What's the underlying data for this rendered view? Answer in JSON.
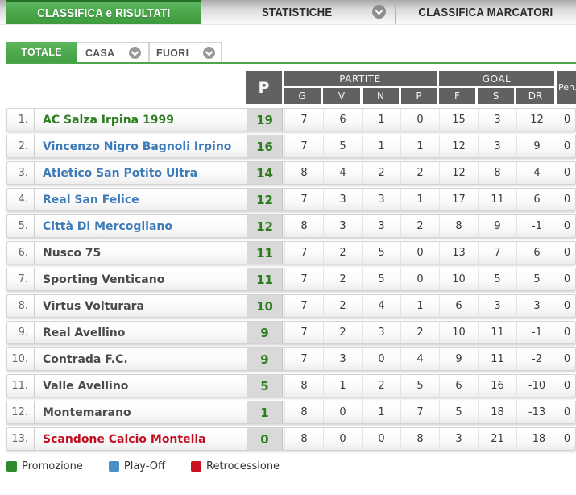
{
  "tabs": {
    "main": [
      {
        "label": "CLASSIFICA e RISULTATI",
        "active": true
      },
      {
        "label": "STATISTICHE",
        "active": false,
        "has_chevron": true
      },
      {
        "label": "CLASSIFICA MARCATORI",
        "active": false
      }
    ],
    "filter": [
      {
        "label": "TOTALE",
        "active": true
      },
      {
        "label": "CASA",
        "active": false,
        "has_chevron": true
      },
      {
        "label": "FUORI",
        "active": false,
        "has_chevron": true
      }
    ]
  },
  "table": {
    "headers": {
      "points": "P",
      "partite": "PARTITE",
      "partite_cols": [
        "G",
        "V",
        "N",
        "P"
      ],
      "goal": "GOAL",
      "goal_cols": [
        "F",
        "S",
        "DR"
      ],
      "pen": "Pen."
    },
    "rows": [
      {
        "pos": "1.",
        "team": "AC Salza Irpina 1999",
        "zone": "promotion",
        "pts": "19",
        "g": "7",
        "v": "6",
        "n": "1",
        "p": "0",
        "f": "15",
        "s": "3",
        "dr": "12",
        "pen": "0"
      },
      {
        "pos": "2.",
        "team": "Vincenzo Nigro Bagnoli Irpino",
        "zone": "playoff",
        "pts": "16",
        "g": "7",
        "v": "5",
        "n": "1",
        "p": "1",
        "f": "12",
        "s": "3",
        "dr": "9",
        "pen": "0"
      },
      {
        "pos": "3.",
        "team": "Atletico San Potito Ultra",
        "zone": "playoff",
        "pts": "14",
        "g": "8",
        "v": "4",
        "n": "2",
        "p": "2",
        "f": "12",
        "s": "8",
        "dr": "4",
        "pen": "0"
      },
      {
        "pos": "4.",
        "team": "Real San Felice",
        "zone": "playoff",
        "pts": "12",
        "g": "7",
        "v": "3",
        "n": "3",
        "p": "1",
        "f": "17",
        "s": "11",
        "dr": "6",
        "pen": "0"
      },
      {
        "pos": "5.",
        "team": "Città Di Mercogliano",
        "zone": "playoff",
        "pts": "12",
        "g": "8",
        "v": "3",
        "n": "3",
        "p": "2",
        "f": "8",
        "s": "9",
        "dr": "-1",
        "pen": "0"
      },
      {
        "pos": "6.",
        "team": "Nusco 75",
        "zone": "none",
        "pts": "11",
        "g": "7",
        "v": "2",
        "n": "5",
        "p": "0",
        "f": "13",
        "s": "7",
        "dr": "6",
        "pen": "0"
      },
      {
        "pos": "7.",
        "team": "Sporting Venticano",
        "zone": "none",
        "pts": "11",
        "g": "7",
        "v": "2",
        "n": "5",
        "p": "0",
        "f": "10",
        "s": "5",
        "dr": "5",
        "pen": "0"
      },
      {
        "pos": "8.",
        "team": "Virtus Volturara",
        "zone": "none",
        "pts": "10",
        "g": "7",
        "v": "2",
        "n": "4",
        "p": "1",
        "f": "6",
        "s": "3",
        "dr": "3",
        "pen": "0"
      },
      {
        "pos": "9.",
        "team": "Real Avellino",
        "zone": "none",
        "pts": "9",
        "g": "7",
        "v": "2",
        "n": "3",
        "p": "2",
        "f": "10",
        "s": "11",
        "dr": "-1",
        "pen": "0"
      },
      {
        "pos": "10.",
        "team": "Contrada F.C.",
        "zone": "none",
        "pts": "9",
        "g": "7",
        "v": "3",
        "n": "0",
        "p": "4",
        "f": "9",
        "s": "11",
        "dr": "-2",
        "pen": "0"
      },
      {
        "pos": "11.",
        "team": "Valle Avellino",
        "zone": "none",
        "pts": "5",
        "g": "8",
        "v": "1",
        "n": "2",
        "p": "5",
        "f": "6",
        "s": "16",
        "dr": "-10",
        "pen": "0"
      },
      {
        "pos": "12.",
        "team": "Montemarano",
        "zone": "none",
        "pts": "1",
        "g": "8",
        "v": "0",
        "n": "1",
        "p": "7",
        "f": "5",
        "s": "18",
        "dr": "-13",
        "pen": "0"
      },
      {
        "pos": "13.",
        "team": "Scandone Calcio Montella",
        "zone": "relegation",
        "pts": "0",
        "g": "8",
        "v": "0",
        "n": "0",
        "p": "8",
        "f": "3",
        "s": "21",
        "dr": "-18",
        "pen": "0"
      }
    ]
  },
  "legend": [
    {
      "label": "Promozione",
      "color": "#2d8a2d"
    },
    {
      "label": "Play-Off",
      "color": "#4a90c8"
    },
    {
      "label": "Retrocessione",
      "color": "#cc1021"
    }
  ],
  "colors": {
    "accent_green": "#4ca64c",
    "points_green": "#2e7d1f",
    "zone_promotion": "#2e7d1e",
    "zone_playoff": "#3d7ab8",
    "zone_none": "#4a4a4a",
    "zone_relegation": "#c01020"
  }
}
